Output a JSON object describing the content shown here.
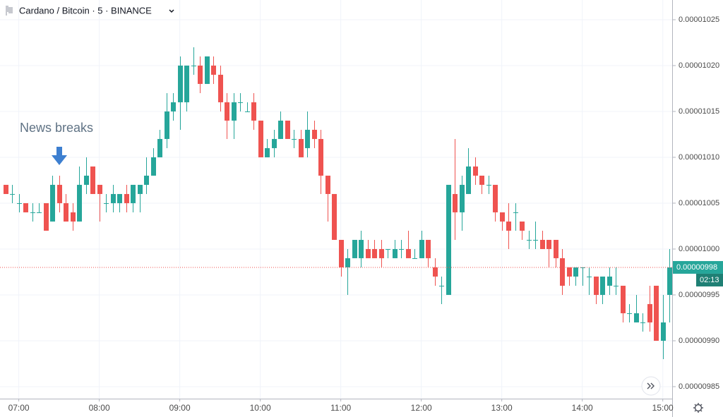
{
  "chart_data": {
    "type": "candlestick",
    "title": "Cardano / Bitcoin · 5 · BINANCE",
    "annotation": "News breaks",
    "up_color": "#26a69a",
    "down_color": "#ef5350",
    "grid": true,
    "xlim": [
      406,
      907
    ],
    "xticks": [
      {
        "value": 420,
        "label": "07:00"
      },
      {
        "value": 480,
        "label": "08:00"
      },
      {
        "value": 540,
        "label": "09:00"
      },
      {
        "value": 600,
        "label": "10:00"
      },
      {
        "value": 660,
        "label": "11:00"
      },
      {
        "value": 720,
        "label": "12:00"
      },
      {
        "value": 780,
        "label": "13:00"
      },
      {
        "value": 840,
        "label": "14:00"
      },
      {
        "value": 900,
        "label": "15:00"
      }
    ],
    "ylim": [
      9.8369e-06,
      1.02715e-05
    ],
    "yticks": [
      1.025e-05,
      {
        "value": 1.02e-05,
        "label": "0.00001020"
      },
      1.015e-05,
      {
        "value": 1.01e-05,
        "label": "0.00001010"
      },
      1.005e-05,
      {
        "value": 1e-05,
        "label": "0.00001000"
      },
      9.95e-06,
      {
        "value": 9.9e-06,
        "label": "0.00000990"
      },
      9.85e-06
    ],
    "last_price": 9.98e-06,
    "countdown": "02:13",
    "x": [
      410,
      415,
      420,
      425,
      430,
      435,
      440,
      445,
      450,
      455,
      460,
      465,
      470,
      475,
      480,
      485,
      490,
      495,
      500,
      505,
      510,
      515,
      520,
      525,
      530,
      535,
      540,
      545,
      550,
      555,
      560,
      565,
      570,
      575,
      580,
      585,
      590,
      595,
      600,
      605,
      610,
      615,
      620,
      625,
      630,
      635,
      640,
      645,
      650,
      655,
      660,
      665,
      670,
      675,
      680,
      685,
      690,
      695,
      700,
      705,
      710,
      715,
      720,
      725,
      730,
      735,
      740,
      745,
      750,
      755,
      760,
      765,
      770,
      775,
      780,
      785,
      790,
      795,
      800,
      805,
      810,
      815,
      820,
      825,
      830,
      835,
      840,
      845,
      850,
      855,
      860,
      865,
      870,
      875,
      880,
      885,
      890,
      895,
      900,
      905
    ],
    "open": [
      1.007e-05,
      1.006e-05,
      1.005e-05,
      1.005e-05,
      1.004e-05,
      1.004e-05,
      1.005e-05,
      1.003e-05,
      1.007e-05,
      1.005e-05,
      1.004e-05,
      1.003e-05,
      1.007e-05,
      1.009e-05,
      1.007e-05,
      1.005e-05,
      1.005e-05,
      1.005e-05,
      1.006e-05,
      1.005e-05,
      1.006e-05,
      1.007e-05,
      1.008e-05,
      1.01e-05,
      1.012e-05,
      1.015e-05,
      1.016e-05,
      1.016e-05,
      1.02e-05,
      1.02e-05,
      1.018e-05,
      1.02e-05,
      1.019e-05,
      1.016e-05,
      1.014e-05,
      1.016e-05,
      1.015e-05,
      1.016e-05,
      1.014e-05,
      1.01e-05,
      1.011e-05,
      1.012e-05,
      1.014e-05,
      1.012e-05,
      1.012e-05,
      1.011e-05,
      1.013e-05,
      1.012e-05,
      1.008e-05,
      1.006e-05,
      1.001e-05,
      9.98e-06,
      9.99e-06,
      9.99e-06,
      1e-05,
      1e-05,
      1e-05,
      1e-05,
      9.99e-06,
      1e-05,
      1e-05,
      9.99e-06,
      9.99e-06,
      1.001e-05,
      9.98e-06,
      9.96e-06,
      9.95e-06,
      1.006e-05,
      1.004e-05,
      1.006e-05,
      1.009e-05,
      1.008e-05,
      1.007e-05,
      1.007e-05,
      1.004e-05,
      1.003e-05,
      1.004e-05,
      1.003e-05,
      1.001e-05,
      1.001e-05,
      1.001e-05,
      1.001e-05,
      1.001e-05,
      9.99e-06,
      9.98e-06,
      9.97e-06,
      9.98e-06,
      9.97e-06,
      9.97e-06,
      9.95e-06,
      9.96e-06,
      9.96e-06,
      9.96e-06,
      9.93e-06,
      9.92e-06,
      9.92e-06,
      9.94e-06,
      9.96e-06,
      9.9e-06,
      9.95e-06
    ],
    "high": [
      1.007e-05,
      1.007e-05,
      1.006e-05,
      1.005e-05,
      1.005e-05,
      1.005e-05,
      1.005e-05,
      1.008e-05,
      1.008e-05,
      1.006e-05,
      1.005e-05,
      1.009e-05,
      1.01e-05,
      1.009e-05,
      1.007e-05,
      1.006e-05,
      1.007e-05,
      1.006e-05,
      1.007e-05,
      1.007e-05,
      1.007e-05,
      1.01e-05,
      1.011e-05,
      1.013e-05,
      1.017e-05,
      1.017e-05,
      1.021e-05,
      1.02e-05,
      1.022e-05,
      1.021e-05,
      1.021e-05,
      1.021e-05,
      1.02e-05,
      1.017e-05,
      1.017e-05,
      1.017e-05,
      1.016e-05,
      1.017e-05,
      1.014e-05,
      1.012e-05,
      1.013e-05,
      1.015e-05,
      1.014e-05,
      1.013e-05,
      1.013e-05,
      1.015e-05,
      1.014e-05,
      1.013e-05,
      1.008e-05,
      1.006e-05,
      1.001e-05,
      1e-05,
      1.001e-05,
      1.002e-05,
      1.001e-05,
      1.001e-05,
      1.001e-05,
      1e-05,
      1.001e-05,
      1.001e-05,
      1.002e-05,
      1e-05,
      1.002e-05,
      1.001e-05,
      9.99e-06,
      9.97e-06,
      1.007e-05,
      1.012e-05,
      1.008e-05,
      1.011e-05,
      1.01e-05,
      1.008e-05,
      1.008e-05,
      1.007e-05,
      1.004e-05,
      1.005e-05,
      1.005e-05,
      1.003e-05,
      1.002e-05,
      1.003e-05,
      1.002e-05,
      1.001e-05,
      1.001e-05,
      1e-05,
      9.98e-06,
      9.98e-06,
      9.98e-06,
      9.98e-06,
      9.97e-06,
      9.97e-06,
      9.98e-06,
      9.98e-06,
      9.96e-06,
      9.94e-06,
      9.95e-06,
      9.93e-06,
      9.96e-06,
      9.96e-06,
      9.95e-06,
      1e-05
    ],
    "low": [
      1.006e-05,
      1.005e-05,
      1.004e-05,
      1.004e-05,
      1.003e-05,
      1.004e-05,
      1.002e-05,
      1.003e-05,
      1.004e-05,
      1.003e-05,
      1.002e-05,
      1.003e-05,
      1.006e-05,
      1.006e-05,
      1.003e-05,
      1.004e-05,
      1.004e-05,
      1.004e-05,
      1.004e-05,
      1.004e-05,
      1.004e-05,
      1.006e-05,
      1.008e-05,
      1.01e-05,
      1.011e-05,
      1.014e-05,
      1.013e-05,
      1.015e-05,
      1.019e-05,
      1.017e-05,
      1.018e-05,
      1.018e-05,
      1.015e-05,
      1.012e-05,
      1.012e-05,
      1.015e-05,
      1.015e-05,
      1.013e-05,
      1.01e-05,
      1.01e-05,
      1.01e-05,
      1.012e-05,
      1.012e-05,
      1.011e-05,
      1.01e-05,
      1.01e-05,
      1.011e-05,
      1.006e-05,
      1.003e-05,
      1.001e-05,
      9.97e-06,
      9.95e-06,
      9.99e-06,
      9.98e-06,
      9.99e-06,
      9.99e-06,
      9.98e-06,
      9.99e-06,
      9.99e-06,
      9.99e-06,
      9.99e-06,
      9.99e-06,
      9.99e-06,
      9.98e-06,
      9.96e-06,
      9.94e-06,
      9.95e-06,
      1.001e-05,
      1.002e-05,
      1.006e-05,
      1.007e-05,
      1.006e-05,
      1.006e-05,
      1.003e-05,
      1.002e-05,
      1e-05,
      1.002e-05,
      1.001e-05,
      1e-05,
      1e-05,
      1e-05,
      9.98e-06,
      9.98e-06,
      9.95e-06,
      9.96e-06,
      9.96e-06,
      9.96e-06,
      9.95e-06,
      9.94e-06,
      9.94e-06,
      9.95e-06,
      9.95e-06,
      9.92e-06,
      9.92e-06,
      9.92e-06,
      9.91e-06,
      9.91e-06,
      9.9e-06,
      9.88e-06,
      9.92e-06
    ],
    "close": [
      1.006e-05,
      1.006e-05,
      1.005e-05,
      1.004e-05,
      1.004e-05,
      1.004e-05,
      1.002e-05,
      1.007e-05,
      1.005e-05,
      1.003e-05,
      1.003e-05,
      1.007e-05,
      1.008e-05,
      1.006e-05,
      1.006e-05,
      1.005e-05,
      1.006e-05,
      1.006e-05,
      1.005e-05,
      1.007e-05,
      1.007e-05,
      1.008e-05,
      1.01e-05,
      1.012e-05,
      1.015e-05,
      1.016e-05,
      1.02e-05,
      1.02e-05,
      1.02e-05,
      1.018e-05,
      1.021e-05,
      1.019e-05,
      1.016e-05,
      1.014e-05,
      1.016e-05,
      1.016e-05,
      1.015e-05,
      1.014e-05,
      1.01e-05,
      1.011e-05,
      1.012e-05,
      1.014e-05,
      1.012e-05,
      1.012e-05,
      1.01e-05,
      1.013e-05,
      1.012e-05,
      1.008e-05,
      1.006e-05,
      1.001e-05,
      9.98e-06,
      9.99e-06,
      1.001e-05,
      1.001e-05,
      9.99e-06,
      9.99e-06,
      9.99e-06,
      1e-05,
      1e-05,
      1e-05,
      9.99e-06,
      9.99e-06,
      1.001e-05,
      9.99e-06,
      9.97e-06,
      9.96e-06,
      1.007e-05,
      1.004e-05,
      1.007e-05,
      1.009e-05,
      1.008e-05,
      1.007e-05,
      1.007e-05,
      1.004e-05,
      1.003e-05,
      1.002e-05,
      1.004e-05,
      1.002e-05,
      1.001e-05,
      1.001e-05,
      1e-05,
      1e-05,
      9.99e-06,
      9.96e-06,
      9.97e-06,
      9.98e-06,
      9.98e-06,
      9.97e-06,
      9.95e-06,
      9.97e-06,
      9.97e-06,
      9.96e-06,
      9.93e-06,
      9.93e-06,
      9.93e-06,
      9.92e-06,
      9.92e-06,
      9.9e-06,
      9.92e-06,
      9.98e-06
    ]
  }
}
